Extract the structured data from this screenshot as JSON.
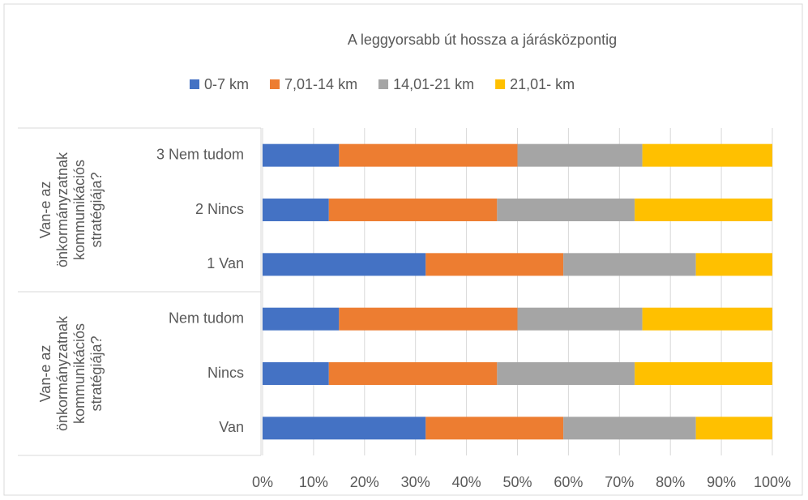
{
  "chart_data": {
    "type": "stacked-bar-horizontal-100",
    "title": "A leggyorsabb út hossza a járásközpontig",
    "categories": [
      "3 Nem tudom",
      "2 Nincs",
      "1 Van",
      "Nem tudom",
      "Nincs",
      "Van"
    ],
    "groups": [
      "Van-e az önkormányzatnak kommunikációs stratégiája?",
      "Van-e az önkormányzatnak kommunikációs stratégiája?"
    ],
    "series": [
      {
        "name": "0-7 km",
        "color": "#4472c4",
        "values": [
          15,
          13,
          32,
          15,
          13,
          32
        ]
      },
      {
        "name": "7,01-14 km",
        "color": "#ed7d31",
        "values": [
          35,
          33,
          27,
          35,
          33,
          27
        ]
      },
      {
        "name": "14,01-21 km",
        "color": "#a5a5a5",
        "values": [
          24.5,
          27,
          26,
          24.5,
          27,
          26
        ]
      },
      {
        "name": "21,01- km",
        "color": "#ffc000",
        "values": [
          25.5,
          27,
          15,
          25.5,
          27,
          15
        ]
      }
    ],
    "xlim": [
      0,
      100
    ],
    "xticks": [
      {
        "value": 0,
        "label": "0%"
      },
      {
        "value": 10,
        "label": "10%"
      },
      {
        "value": 20,
        "label": "20%"
      },
      {
        "value": 30,
        "label": "30%"
      },
      {
        "value": 40,
        "label": "40%"
      },
      {
        "value": 50,
        "label": "50%"
      },
      {
        "value": 60,
        "label": "60%"
      },
      {
        "value": 70,
        "label": "70%"
      },
      {
        "value": 80,
        "label": "80%"
      },
      {
        "value": 90,
        "label": "90%"
      },
      {
        "value": 100,
        "label": "100%"
      }
    ],
    "grid": true,
    "legend": "top"
  }
}
